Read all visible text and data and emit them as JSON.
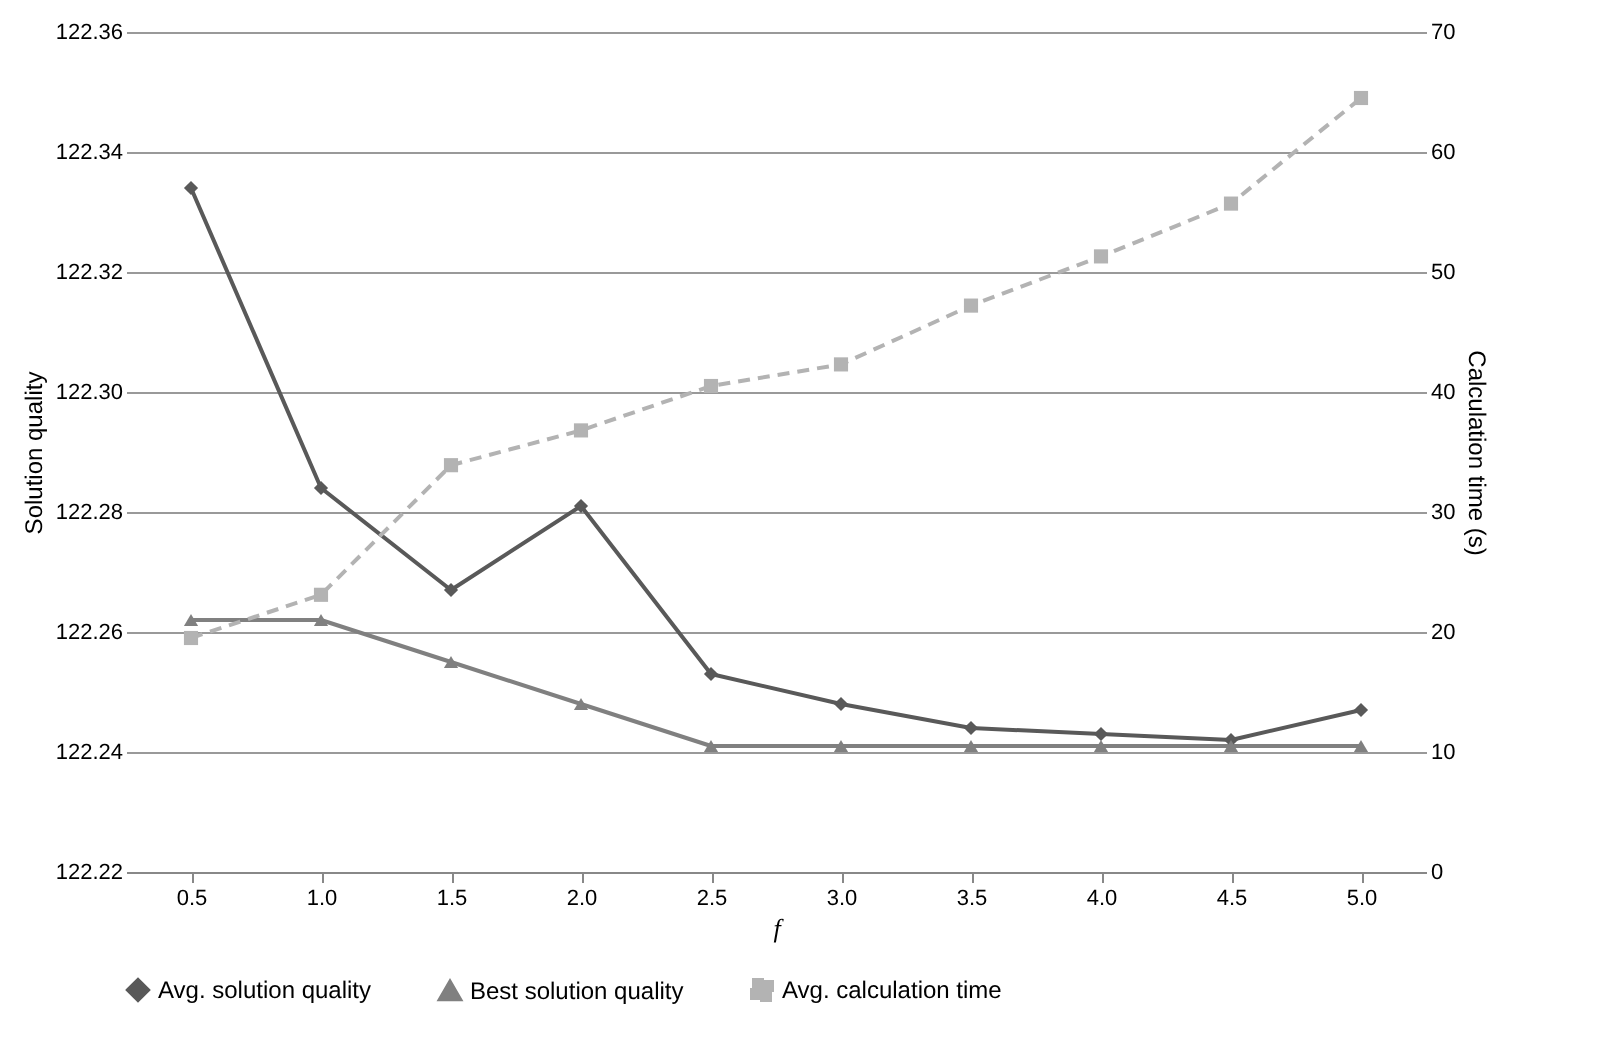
{
  "chart_data": {
    "type": "line",
    "xlabel": "f",
    "ylabel": "Solution quality",
    "y2label": "Calculation time (s)",
    "categories": [
      "0.5",
      "1.0",
      "1.5",
      "2.0",
      "2.5",
      "3.0",
      "3.5",
      "4.0",
      "4.5",
      "5.0"
    ],
    "series": [
      {
        "name": "Avg. solution quality",
        "color": "#595959",
        "marker": "diamond",
        "line_style": "solid",
        "values": [
          122.334,
          122.284,
          122.267,
          122.281,
          122.253,
          122.248,
          122.244,
          122.243,
          122.242,
          122.247
        ]
      },
      {
        "name": "Best solution quality",
        "color": "#808080",
        "marker": "triangle",
        "line_style": "solid",
        "values": [
          122.262,
          122.262,
          122.255,
          122.248,
          122.241,
          122.241,
          122.241,
          122.241,
          122.241,
          122.241
        ]
      },
      {
        "name": "Avg. calculation time",
        "color": "#b3b3b3",
        "marker": "square",
        "line_style": "dashed",
        "axis": "y2",
        "values": [
          19.5,
          23.1,
          33.9,
          36.8,
          40.5,
          42.3,
          47.2,
          51.3,
          55.7,
          64.5
        ]
      }
    ],
    "ylim": [
      122.22,
      122.36
    ],
    "yticks": [
      122.22,
      122.24,
      122.26,
      122.28,
      {
        "value": 122.3,
        "label": "122.30"
      },
      122.32,
      122.34,
      122.36
    ],
    "y2lim": [
      0,
      70
    ],
    "y2ticks": [
      0,
      10,
      20,
      30,
      40,
      50,
      60,
      70
    ],
    "grid": "y",
    "legend": "bottom"
  }
}
